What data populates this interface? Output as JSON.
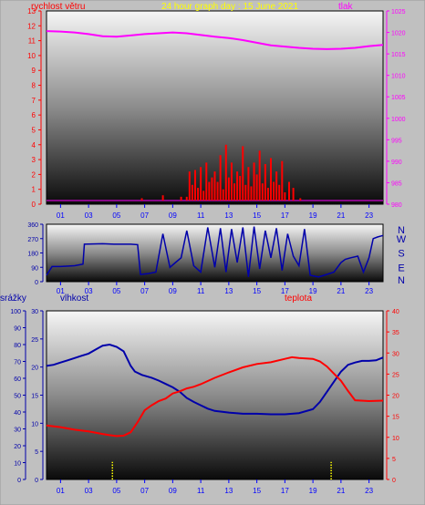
{
  "colors": {
    "background": "#c0c0c0",
    "wind": "#ff0000",
    "pressure": "#ff00ff",
    "direction": "#0000aa",
    "humidity": "#0000aa",
    "temperature": "#ff0000",
    "rain": "#ffff00",
    "hour_ticks": "#0000ff",
    "title": "#ffff00"
  },
  "chart_data": [
    {
      "type": "line",
      "title": "24 hour graph day : 15 June 2021",
      "left_label": "rychlost větru",
      "right_label": "tlak",
      "x_ticks": [
        "01",
        "03",
        "05",
        "07",
        "09",
        "11",
        "13",
        "15",
        "17",
        "19",
        "21",
        "23"
      ],
      "xlim": [
        0,
        24
      ],
      "left_ticks": [
        "0",
        "1",
        "2",
        "3",
        "4",
        "5",
        "6",
        "7",
        "8",
        "9",
        "10",
        "11",
        "12",
        "13"
      ],
      "ylim_left": [
        0,
        13
      ],
      "right_ticks": [
        "980",
        "985",
        "990",
        "995",
        "1000",
        "1005",
        "1010",
        "1015",
        "1020",
        "1025"
      ],
      "ylim_right": [
        980,
        1025
      ],
      "series": [
        {
          "key": "pressure",
          "axis": "right",
          "x": [
            0,
            1,
            2,
            3,
            4,
            5,
            6,
            7,
            8,
            9,
            10,
            11,
            12,
            13,
            14,
            15,
            16,
            17,
            18,
            19,
            20,
            21,
            22,
            23,
            24
          ],
          "values": [
            1020.3,
            1020.2,
            1020.0,
            1019.6,
            1019.1,
            1019.0,
            1019.3,
            1019.6,
            1019.8,
            1020.0,
            1019.8,
            1019.4,
            1019.0,
            1018.7,
            1018.2,
            1017.6,
            1017.0,
            1016.7,
            1016.4,
            1016.2,
            1016.1,
            1016.2,
            1016.4,
            1016.8,
            1017.1
          ]
        },
        {
          "key": "wind",
          "axis": "left",
          "style": "bars",
          "x": [
            6.8,
            8.3,
            9.6,
            10.0,
            10.2,
            10.4,
            10.6,
            10.8,
            11.0,
            11.2,
            11.4,
            11.6,
            11.8,
            12.0,
            12.2,
            12.4,
            12.6,
            12.8,
            13.0,
            13.2,
            13.4,
            13.6,
            13.8,
            14.0,
            14.2,
            14.4,
            14.6,
            14.8,
            15.0,
            15.2,
            15.4,
            15.6,
            15.8,
            16.0,
            16.2,
            16.4,
            16.6,
            16.8,
            17.0,
            17.3,
            17.6,
            18.1
          ],
          "values": [
            0.4,
            0.6,
            0.5,
            0.5,
            2.2,
            1.3,
            2.3,
            1.1,
            2.5,
            0.9,
            2.8,
            1.5,
            1.8,
            2.2,
            1.5,
            3.3,
            1.0,
            4.0,
            1.8,
            2.8,
            1.4,
            2.2,
            1.9,
            3.9,
            1.3,
            2.5,
            1.2,
            2.8,
            2.0,
            3.6,
            1.4,
            2.7,
            1.1,
            3.1,
            1.5,
            2.2,
            1.3,
            2.9,
            0.8,
            1.5,
            1.1,
            0.4
          ]
        }
      ]
    },
    {
      "type": "line",
      "right_labels": [
        "N",
        "W",
        "S",
        "E",
        "N"
      ],
      "left_ticks": [
        "0",
        "90",
        "180",
        "270",
        "360"
      ],
      "ylim": [
        0,
        360
      ],
      "x_ticks": [
        "01",
        "03",
        "05",
        "07",
        "09",
        "11",
        "13",
        "15",
        "17",
        "19",
        "21",
        "23"
      ],
      "xlim": [
        0,
        24
      ],
      "series": [
        {
          "key": "direction",
          "x": [
            0,
            0.4,
            1,
            2,
            2.6,
            2.7,
            4,
            4.8,
            5,
            6,
            6.5,
            6.7,
            7.2,
            7.8,
            8.3,
            8.8,
            9.2,
            9.6,
            10,
            10.5,
            11,
            11.5,
            12,
            12.4,
            12.8,
            13.2,
            13.6,
            14,
            14.4,
            14.8,
            15.2,
            15.6,
            16,
            16.4,
            16.8,
            17.2,
            17.6,
            18,
            18.4,
            18.8,
            19.4,
            19.8,
            20.5,
            21,
            21.3,
            21.7,
            22.2,
            22.6,
            23,
            23.3,
            23.6,
            24
          ],
          "values": [
            40,
            95,
            95,
            100,
            110,
            235,
            238,
            235,
            235,
            235,
            232,
            45,
            50,
            60,
            300,
            90,
            120,
            150,
            320,
            100,
            60,
            340,
            90,
            335,
            60,
            330,
            120,
            340,
            30,
            345,
            80,
            320,
            150,
            335,
            70,
            300,
            160,
            100,
            330,
            40,
            30,
            40,
            60,
            120,
            140,
            150,
            160,
            60,
            150,
            270,
            280,
            290
          ]
        }
      ]
    },
    {
      "type": "line",
      "left_label": "srážky",
      "second_label": "vlhkost",
      "right_label": "teplota",
      "left_ticks": [
        "0",
        "10",
        "20",
        "30",
        "40",
        "50",
        "60",
        "70",
        "80",
        "90",
        "100"
      ],
      "ylim_rain": [
        0,
        100
      ],
      "second_ticks": [
        "0",
        "5",
        "10",
        "15",
        "20",
        "25",
        "30"
      ],
      "ylim_humidity": [
        0,
        30
      ],
      "right_ticks": [
        "0",
        "5",
        "10",
        "15",
        "20",
        "25",
        "30",
        "35",
        "40"
      ],
      "ylim_temperature": [
        0,
        40
      ],
      "x_ticks": [
        "01",
        "03",
        "05",
        "07",
        "09",
        "11",
        "13",
        "15",
        "17",
        "19",
        "21",
        "23"
      ],
      "xlim": [
        0,
        24
      ],
      "series": [
        {
          "key": "humidity",
          "x": [
            0,
            0.5,
            1,
            1.5,
            2,
            2.5,
            3,
            3.5,
            4,
            4.5,
            5,
            5.5,
            6,
            6.3,
            6.8,
            7.5,
            8,
            8.5,
            9,
            9.5,
            10,
            10.5,
            11,
            11.5,
            12,
            13,
            14,
            15,
            16,
            17,
            18,
            19,
            19.5,
            20,
            20.5,
            21,
            21.5,
            22,
            22.5,
            23,
            23.5,
            24
          ],
          "values": [
            20.2,
            20.4,
            20.8,
            21.2,
            21.6,
            22.0,
            22.4,
            23.1,
            23.8,
            24.0,
            23.6,
            22.8,
            20.2,
            19.2,
            18.6,
            18.1,
            17.6,
            17.0,
            16.4,
            15.6,
            14.5,
            13.8,
            13.2,
            12.6,
            12.2,
            11.9,
            11.7,
            11.7,
            11.6,
            11.6,
            11.8,
            12.5,
            13.8,
            15.6,
            17.4,
            19.2,
            20.4,
            20.8,
            21.1,
            21.1,
            21.2,
            21.7
          ]
        },
        {
          "key": "temperature",
          "x": [
            0,
            1,
            2,
            3,
            4,
            4.5,
            5,
            5.5,
            6,
            6.5,
            7,
            7.5,
            8,
            8.5,
            9,
            9.5,
            10,
            10.5,
            11,
            12,
            13,
            14,
            15,
            16,
            17,
            17.5,
            18,
            18.5,
            19,
            19.5,
            20,
            20.5,
            21,
            21.5,
            22,
            23,
            24
          ],
          "values": [
            12.8,
            12.4,
            11.8,
            11.4,
            10.8,
            10.5,
            10.3,
            10.4,
            11.2,
            13.6,
            16.4,
            17.6,
            18.6,
            19.2,
            20.4,
            20.9,
            21.6,
            22.0,
            22.6,
            24.1,
            25.4,
            26.6,
            27.4,
            27.8,
            28.6,
            29.0,
            28.8,
            28.7,
            28.6,
            28.0,
            26.8,
            25.1,
            23.4,
            21.0,
            18.8,
            18.6,
            18.7
          ]
        },
        {
          "key": "rain",
          "style": "dotted-bars",
          "x": [
            4.7,
            20.3
          ],
          "values": [
            5,
            5
          ]
        }
      ]
    }
  ]
}
